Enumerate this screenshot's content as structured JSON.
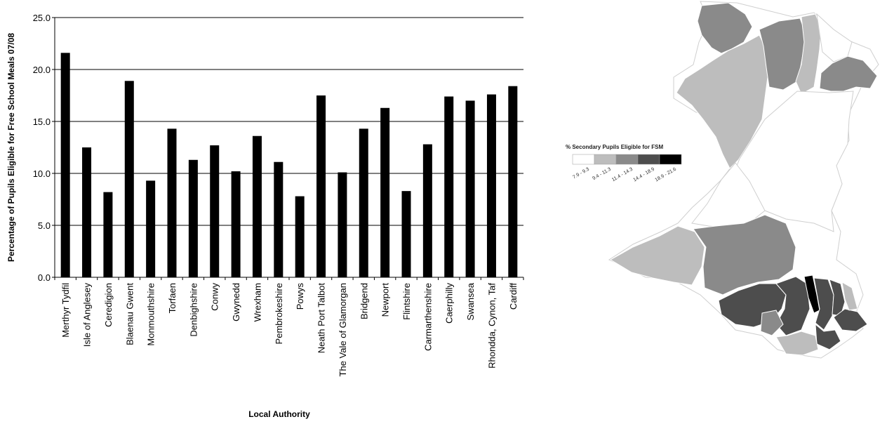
{
  "chart_data": {
    "type": "bar",
    "title": "",
    "xlabel": "Local Authority",
    "ylabel": "Percentage of Pupils Eligible for Free School Meals 07/08",
    "ylim": [
      0,
      25
    ],
    "yticks": [
      "0.0",
      "5.0",
      "10.0",
      "15.0",
      "20.0",
      "25.0"
    ],
    "grid": true,
    "bar_color": "#000000",
    "categories": [
      "Merthyr Tydfil",
      "Isle of Anglesey",
      "Ceredigion",
      "Blaenau Gwent",
      "Monmouthshire",
      "Torfaen",
      "Denbighshire",
      "Conwy",
      "Gwynedd",
      "Wrexham",
      "Pembrokeshire",
      "Powys",
      "Neath Port Talbot",
      "The Vale of Glamorgan",
      "Bridgend",
      "Newport",
      "Flintshire",
      "Carmarthenshire",
      "Caerphilly",
      "Swansea",
      "Rhondda, Cynon, Taf",
      "Cardiff"
    ],
    "values": [
      21.6,
      12.5,
      8.2,
      18.9,
      9.3,
      14.3,
      11.3,
      12.7,
      10.2,
      13.6,
      11.1,
      7.8,
      17.5,
      10.1,
      14.3,
      16.3,
      8.3,
      12.8,
      17.4,
      17.0,
      17.6,
      18.4
    ]
  },
  "map": {
    "legend_title": "% Secondary Pupils Eligible for FSM",
    "legend_ranges": [
      "7.9 - 9.3",
      "9.4 - 11.3",
      "11.4 - 14.3",
      "14.4 - 18.9",
      "18.9 - 21.6"
    ],
    "legend_colors": [
      "#ffffff",
      "#bdbdbd",
      "#8a8a8a",
      "#4d4d4d",
      "#000000"
    ]
  }
}
